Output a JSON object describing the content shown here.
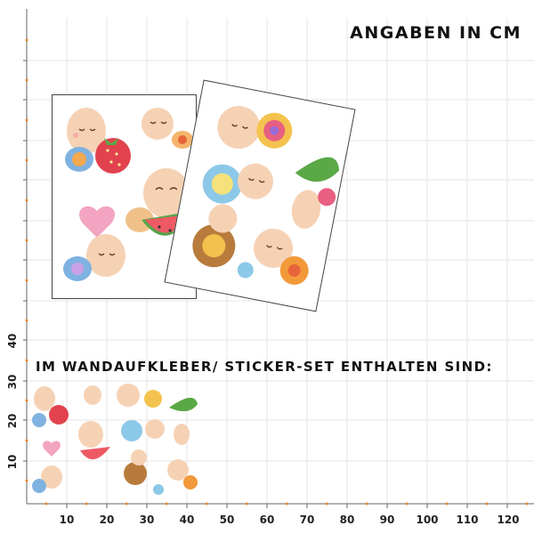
{
  "header": {
    "title": "ANGABEN IN CM"
  },
  "set_label": "IM WANDAUFKLEBER/ STICKER-SET ENTHALTEN SIND:",
  "ruler": {
    "x_labels": [
      "10",
      "20",
      "30",
      "40",
      "50",
      "60",
      "70",
      "80",
      "90",
      "100",
      "110",
      "120"
    ],
    "y_labels": [
      "10",
      "20",
      "30",
      "40"
    ]
  },
  "colors": {
    "grid_line": "#e3e3e3",
    "ruler_line": "#666666",
    "accent_dot": "#e8832a"
  }
}
